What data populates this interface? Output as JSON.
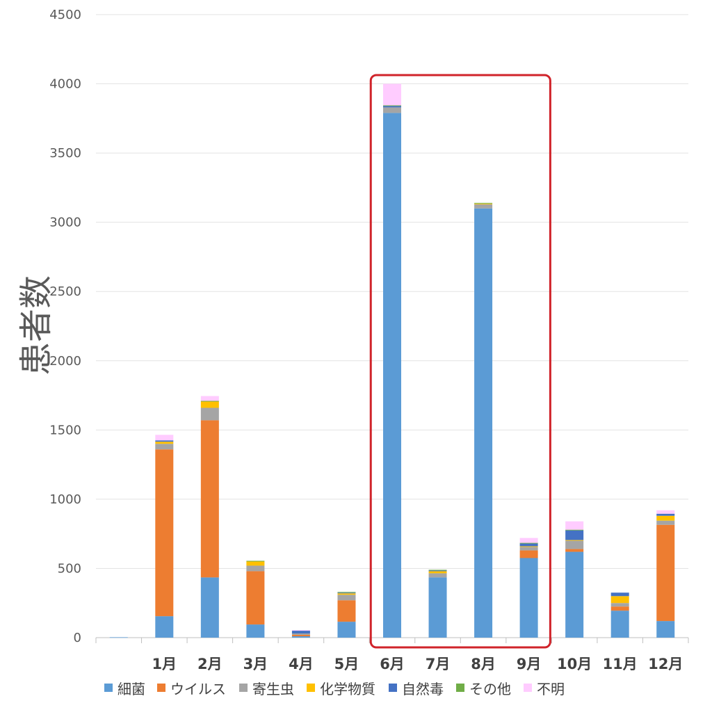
{
  "chart_data": {
    "type": "bar",
    "stacked": true,
    "title": "",
    "xlabel": "",
    "ylabel": "患者数",
    "ylim": [
      0,
      4500
    ],
    "yticks": [
      0,
      500,
      1000,
      1500,
      2000,
      2500,
      3000,
      3500,
      4000,
      4500
    ],
    "grid": true,
    "legend_position": "bottom",
    "categories": [
      "",
      "1月",
      "2月",
      "3月",
      "4月",
      "5月",
      "6月",
      "7月",
      "8月",
      "9月",
      "10月",
      "11月",
      "12月"
    ],
    "series": [
      {
        "name": "細菌",
        "color": "#5b9bd5",
        "values": [
          3,
          155,
          435,
          95,
          10,
          115,
          3790,
          435,
          3100,
          575,
          620,
          195,
          120
        ]
      },
      {
        "name": "ウイルス",
        "color": "#ed7d31",
        "values": [
          0,
          1205,
          1135,
          385,
          10,
          155,
          0,
          0,
          0,
          55,
          20,
          30,
          695
        ]
      },
      {
        "name": "寄生虫",
        "color": "#a5a5a5",
        "values": [
          0,
          40,
          90,
          40,
          10,
          40,
          40,
          30,
          30,
          25,
          60,
          25,
          30
        ]
      },
      {
        "name": "化学物質",
        "color": "#ffc000",
        "values": [
          0,
          15,
          45,
          30,
          0,
          10,
          0,
          15,
          5,
          5,
          5,
          50,
          35
        ]
      },
      {
        "name": "自然毒",
        "color": "#4472c4",
        "values": [
          0,
          10,
          0,
          0,
          20,
          5,
          10,
          5,
          0,
          20,
          70,
          25,
          15
        ]
      },
      {
        "name": "その他",
        "color": "#70ad47",
        "values": [
          0,
          0,
          5,
          5,
          0,
          5,
          5,
          5,
          5,
          5,
          5,
          0,
          0
        ]
      },
      {
        "name": "不明",
        "color": "#ffccff",
        "values": [
          0,
          40,
          35,
          0,
          5,
          0,
          155,
          0,
          0,
          35,
          60,
          0,
          25
        ]
      }
    ],
    "highlight": {
      "from": "6月",
      "to": "9月",
      "color": "#d0232a"
    }
  }
}
